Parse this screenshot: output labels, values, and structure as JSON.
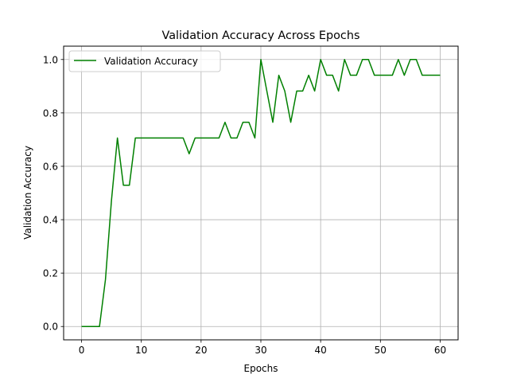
{
  "chart_data": {
    "type": "line",
    "title": "Validation Accuracy Across Epochs",
    "xlabel": "Epochs",
    "ylabel": "Validation Accuracy",
    "xlim": [
      -3,
      63
    ],
    "ylim": [
      -0.05,
      1.05
    ],
    "xticks": [
      0,
      10,
      20,
      30,
      40,
      50,
      60
    ],
    "xtick_labels": [
      "0",
      "10",
      "20",
      "30",
      "40",
      "50",
      "60"
    ],
    "yticks": [
      0.0,
      0.2,
      0.4,
      0.6,
      0.8,
      1.0
    ],
    "ytick_labels": [
      "0.0",
      "0.2",
      "0.4",
      "0.6",
      "0.8",
      "1.0"
    ],
    "grid": true,
    "legend_position": "top-left",
    "series": [
      {
        "name": "Validation Accuracy",
        "color": "#008000",
        "x": [
          0,
          1,
          2,
          3,
          4,
          5,
          6,
          7,
          8,
          9,
          10,
          11,
          12,
          13,
          14,
          15,
          16,
          17,
          18,
          19,
          20,
          21,
          22,
          23,
          24,
          25,
          26,
          27,
          28,
          29,
          30,
          31,
          32,
          33,
          34,
          35,
          36,
          37,
          38,
          39,
          40,
          41,
          42,
          43,
          44,
          45,
          46,
          47,
          48,
          49,
          50,
          51,
          52,
          53,
          54,
          55,
          56,
          57,
          58,
          59,
          60
        ],
        "y": [
          0.0,
          0.0,
          0.0,
          0.0,
          0.176,
          0.471,
          0.706,
          0.529,
          0.529,
          0.706,
          0.706,
          0.706,
          0.706,
          0.706,
          0.706,
          0.706,
          0.706,
          0.706,
          0.647,
          0.706,
          0.706,
          0.706,
          0.706,
          0.706,
          0.765,
          0.706,
          0.706,
          0.765,
          0.765,
          0.706,
          1.0,
          0.882,
          0.765,
          0.941,
          0.882,
          0.765,
          0.882,
          0.882,
          0.941,
          0.882,
          1.0,
          0.941,
          0.941,
          0.882,
          1.0,
          0.941,
          0.941,
          1.0,
          1.0,
          0.941,
          0.941,
          0.941,
          0.941,
          1.0,
          0.941,
          1.0,
          1.0,
          0.941,
          0.941,
          0.941,
          0.941
        ]
      }
    ]
  }
}
